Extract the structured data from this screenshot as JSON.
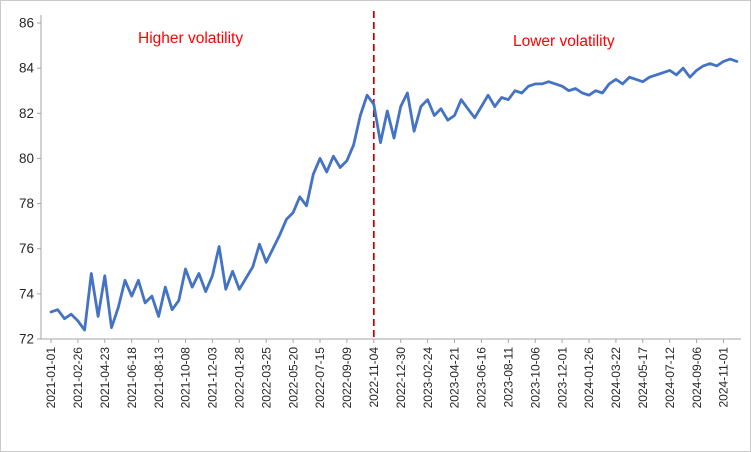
{
  "chart_data": {
    "type": "line",
    "title": "",
    "xlabel": "",
    "ylabel": "",
    "ylim": [
      72,
      86
    ],
    "yticks": [
      72,
      74,
      76,
      78,
      80,
      82,
      84,
      86
    ],
    "grid": false,
    "legend": false,
    "line_color": "#4472C4",
    "axis_color": "#a6a6a6",
    "tick_label_color": "#262626",
    "x_tick_labels": [
      "2021-01-01",
      "2021-02-26",
      "2021-04-23",
      "2021-06-18",
      "2021-08-13",
      "2021-10-08",
      "2021-12-03",
      "2022-01-28",
      "2022-03-25",
      "2022-05-20",
      "2022-07-15",
      "2022-09-09",
      "2022-11-04",
      "2022-12-30",
      "2023-02-24",
      "2023-04-21",
      "2023-06-16",
      "2023-08-11",
      "2023-10-06",
      "2023-12-01",
      "2024-01-26",
      "2024-03-22",
      "2024-05-17",
      "2024-07-12",
      "2024-09-06",
      "2024-11-01"
    ],
    "points_per_tick_interval": 4,
    "values": [
      73.2,
      73.3,
      72.9,
      73.1,
      72.8,
      72.4,
      74.9,
      73.0,
      74.8,
      72.5,
      73.4,
      74.6,
      73.9,
      74.6,
      73.6,
      73.9,
      73.0,
      74.3,
      73.3,
      73.7,
      75.1,
      74.3,
      74.9,
      74.1,
      74.8,
      76.1,
      74.2,
      75.0,
      74.2,
      74.7,
      75.2,
      76.2,
      75.4,
      76.0,
      76.6,
      77.3,
      77.6,
      78.3,
      77.9,
      79.3,
      80.0,
      79.4,
      80.1,
      79.6,
      79.9,
      80.6,
      81.9,
      82.8,
      82.4,
      80.7,
      82.1,
      80.9,
      82.3,
      82.9,
      81.2,
      82.3,
      82.6,
      81.9,
      82.2,
      81.7,
      81.9,
      82.6,
      82.2,
      81.8,
      82.3,
      82.8,
      82.3,
      82.7,
      82.6,
      83.0,
      82.9,
      83.2,
      83.3,
      83.3,
      83.4,
      83.3,
      83.2,
      83.0,
      83.1,
      82.9,
      82.8,
      83.0,
      82.9,
      83.3,
      83.5,
      83.3,
      83.6,
      83.5,
      83.4,
      83.6,
      83.7,
      83.8,
      83.9,
      83.7,
      84.0,
      83.6,
      83.9,
      84.1,
      84.2,
      84.1,
      84.3,
      84.4,
      84.3
    ],
    "vline": {
      "label": "2022-11-04",
      "tick_index": 12,
      "color": "#c00000",
      "style": "dashed"
    },
    "annotations": [
      {
        "text": "Higher volatility",
        "color": "#ff0000"
      },
      {
        "text": "Lower volatility",
        "color": "#ff0000"
      }
    ]
  }
}
